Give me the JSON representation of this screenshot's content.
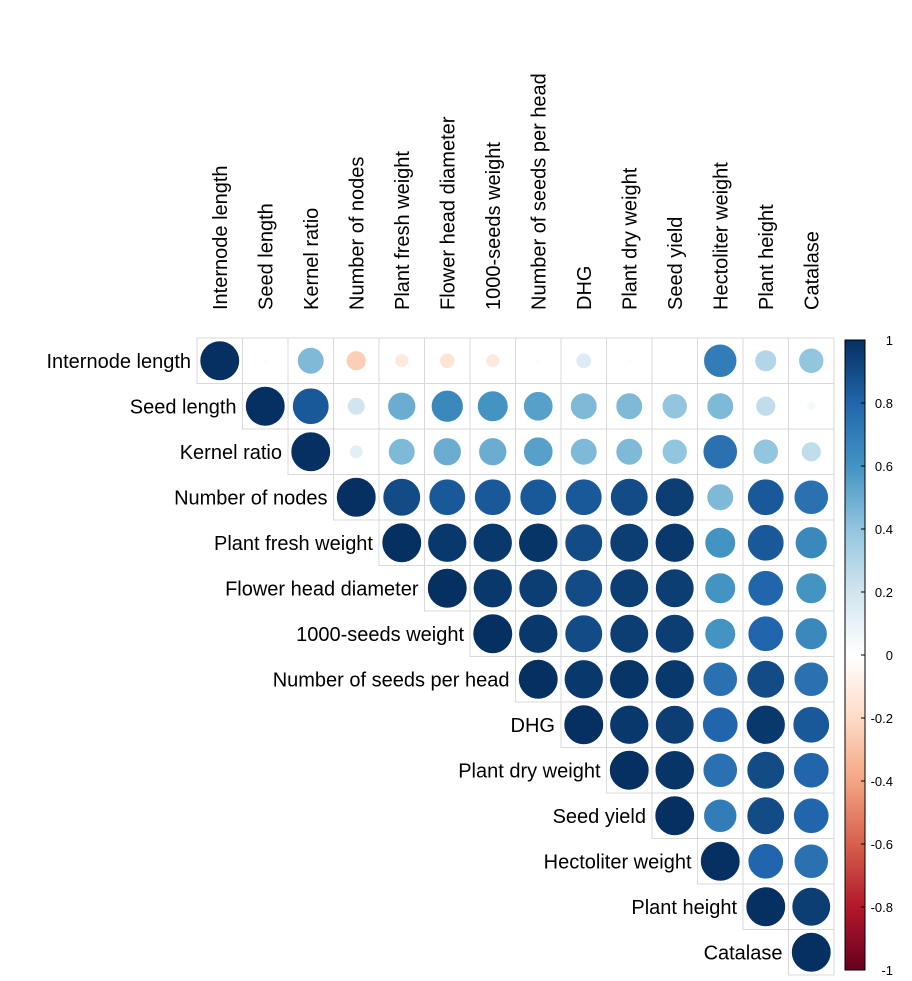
{
  "chart_data": {
    "type": "heatmap",
    "style": "upper-triangle correlation matrix, circle glyphs (area and color encode correlation)",
    "labels": [
      "Internode length",
      "Seed length",
      "Kernel ratio",
      "Number of nodes",
      "Plant fresh weight",
      "Flower head diameter",
      "1000-seeds weight",
      "Number of seeds per head",
      "DHG",
      "Plant dry weight",
      "Seed yield",
      "Hectoliter weight",
      "Plant height",
      "Catalase"
    ],
    "matrix": [
      [
        1.0,
        0.02,
        0.45,
        -0.25,
        -0.12,
        -0.15,
        -0.12,
        0.02,
        0.15,
        0.02,
        0.0,
        0.7,
        0.3,
        0.4
      ],
      [
        null,
        1.0,
        0.85,
        0.2,
        0.5,
        0.65,
        0.6,
        0.55,
        0.45,
        0.45,
        0.4,
        0.45,
        0.25,
        0.05
      ],
      [
        null,
        null,
        1.0,
        0.12,
        0.45,
        0.5,
        0.5,
        0.55,
        0.45,
        0.45,
        0.4,
        0.75,
        0.4,
        0.25
      ],
      [
        null,
        null,
        null,
        1.0,
        0.9,
        0.85,
        0.85,
        0.85,
        0.85,
        0.9,
        0.95,
        0.45,
        0.85,
        0.75
      ],
      [
        null,
        null,
        null,
        null,
        1.0,
        0.97,
        0.97,
        0.98,
        0.9,
        0.95,
        0.97,
        0.6,
        0.85,
        0.65
      ],
      [
        null,
        null,
        null,
        null,
        null,
        1.0,
        0.97,
        0.95,
        0.9,
        0.95,
        0.95,
        0.6,
        0.8,
        0.6
      ],
      [
        null,
        null,
        null,
        null,
        null,
        null,
        1.0,
        0.97,
        0.9,
        0.95,
        0.95,
        0.6,
        0.8,
        0.65
      ],
      [
        null,
        null,
        null,
        null,
        null,
        null,
        null,
        1.0,
        0.97,
        0.98,
        0.97,
        0.75,
        0.9,
        0.75
      ],
      [
        null,
        null,
        null,
        null,
        null,
        null,
        null,
        null,
        1.0,
        0.97,
        0.95,
        0.8,
        0.97,
        0.85
      ],
      [
        null,
        null,
        null,
        null,
        null,
        null,
        null,
        null,
        null,
        1.0,
        0.98,
        0.75,
        0.9,
        0.8
      ],
      [
        null,
        null,
        null,
        null,
        null,
        null,
        null,
        null,
        null,
        null,
        1.0,
        0.7,
        0.9,
        0.8
      ],
      [
        null,
        null,
        null,
        null,
        null,
        null,
        null,
        null,
        null,
        null,
        null,
        1.0,
        0.8,
        0.75
      ],
      [
        null,
        null,
        null,
        null,
        null,
        null,
        null,
        null,
        null,
        null,
        null,
        null,
        1.0,
        0.95
      ],
      [
        null,
        null,
        null,
        null,
        null,
        null,
        null,
        null,
        null,
        null,
        null,
        null,
        null,
        1.0
      ]
    ],
    "colorbar": {
      "range": [
        -1,
        1
      ],
      "ticks": [
        "1",
        "0.8",
        "0.6",
        "0.4",
        "0.2",
        "0",
        "-0.2",
        "-0.4",
        "-0.6",
        "-0.8",
        "-1"
      ],
      "tick_values": [
        1,
        0.8,
        0.6,
        0.4,
        0.2,
        0,
        -0.2,
        -0.4,
        -0.6,
        -0.8,
        -1
      ],
      "colors": [
        "#67001F",
        "#B2182B",
        "#D6604D",
        "#F4A582",
        "#FDDBC7",
        "#FFFFFF",
        "#D1E5F0",
        "#92C5DE",
        "#4393C3",
        "#2166AC",
        "#053061"
      ],
      "placement": "right"
    },
    "grid": true
  }
}
